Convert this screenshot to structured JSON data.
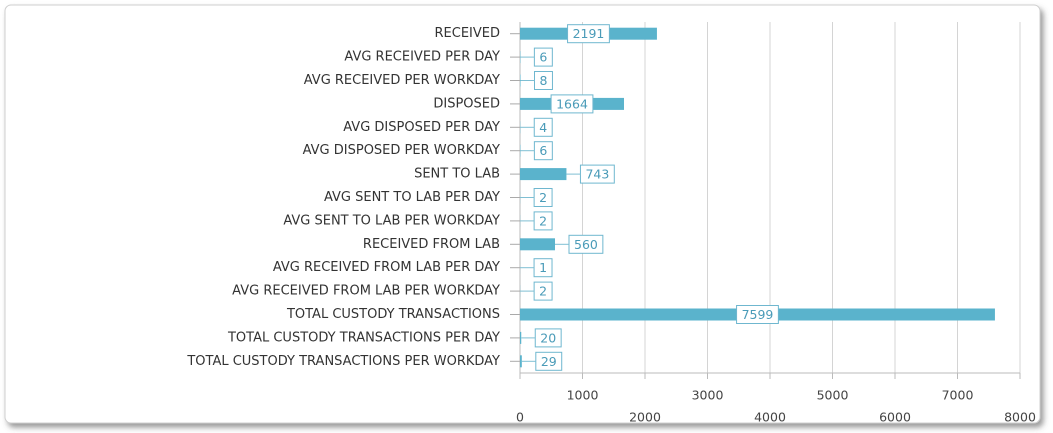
{
  "chart_data": {
    "type": "bar",
    "orientation": "horizontal",
    "categories": [
      "RECEIVED",
      "AVG RECEIVED PER DAY",
      "AVG RECEIVED PER WORKDAY",
      "DISPOSED",
      "AVG DISPOSED PER DAY",
      "AVG DISPOSED PER WORKDAY",
      "SENT TO LAB",
      "AVG SENT TO LAB PER DAY",
      "AVG SENT TO LAB PER WORKDAY",
      "RECEIVED FROM LAB",
      "AVG RECEIVED FROM LAB PER DAY",
      "AVG RECEIVED FROM LAB PER WORKDAY",
      "TOTAL CUSTODY TRANSACTIONS",
      "TOTAL CUSTODY TRANSACTIONS PER DAY",
      "TOTAL CUSTODY TRANSACTIONS PER WORKDAY"
    ],
    "values": [
      2191,
      6,
      8,
      1664,
      4,
      6,
      743,
      2,
      2,
      560,
      1,
      2,
      7599,
      20,
      29
    ],
    "color": "#5ab3cc",
    "xlim": [
      0,
      8000
    ],
    "xticks": [
      0,
      1000,
      2000,
      3000,
      4000,
      5000,
      6000,
      7000,
      8000
    ],
    "grid": true
  }
}
